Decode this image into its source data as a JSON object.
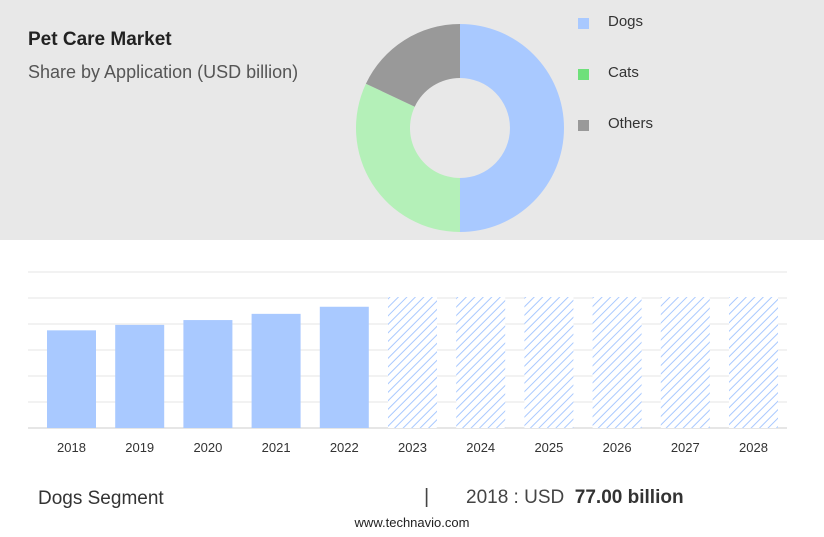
{
  "header": {
    "title": "Pet Care Market",
    "subtitle": "Share by Application (USD billion)"
  },
  "colors": {
    "dogs": "#a9c9ff",
    "cats": "#b4f0b8",
    "others": "#999999",
    "legend_cats": "#6ee07a",
    "forecast_hatch": "#a9c9ff"
  },
  "chart_data": [
    {
      "type": "pie",
      "subtype": "donut",
      "categories": [
        "Dogs",
        "Cats",
        "Others"
      ],
      "values": [
        50,
        32,
        18
      ],
      "legend": "right"
    },
    {
      "type": "bar",
      "categories": [
        "2018",
        "2019",
        "2020",
        "2021",
        "2022",
        "2023",
        "2024",
        "2025",
        "2026",
        "2027",
        "2028"
      ],
      "values": [
        77.0,
        81.3,
        85.1,
        90.0,
        95.6,
        null,
        null,
        null,
        null,
        null,
        null
      ],
      "forecast": [
        "2023",
        "2024",
        "2025",
        "2026",
        "2027",
        "2028"
      ],
      "ylim": [
        0,
        123
      ],
      "grid": true
    }
  ],
  "footer": {
    "segment": "Dogs Segment",
    "separator": "|",
    "value_prefix": "2018 : USD",
    "value_bold": "77.00 billion",
    "source": "www.technavio.com"
  }
}
